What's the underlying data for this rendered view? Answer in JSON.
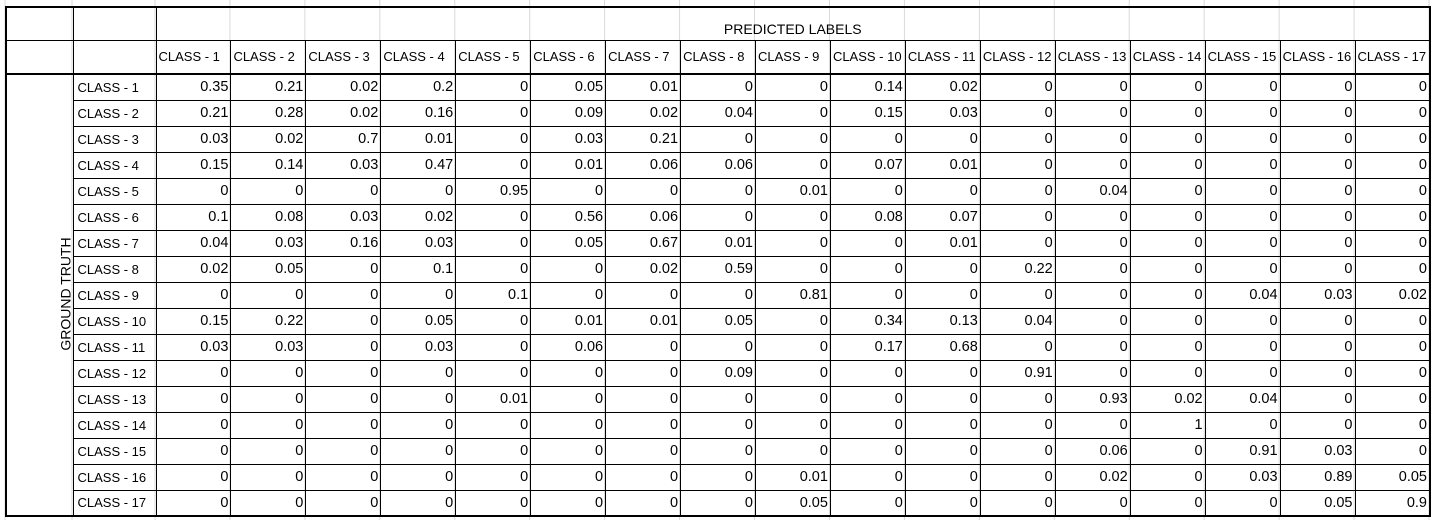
{
  "chart_data": {
    "type": "table",
    "title": "PREDICTED LABELS",
    "ylabel": "GROUND TRUTH",
    "columns": [
      "CLASS - 1",
      "CLASS - 2",
      "CLASS - 3",
      "CLASS - 4",
      "CLASS - 5",
      "CLASS - 6",
      "CLASS - 7",
      "CLASS - 8",
      "CLASS - 9",
      "CLASS - 10",
      "CLASS - 11",
      "CLASS - 12",
      "CLASS - 13",
      "CLASS - 14",
      "CLASS - 15",
      "CLASS - 16",
      "CLASS - 17"
    ],
    "rows": [
      {
        "label": "CLASS - 1",
        "values": [
          "0.35",
          "0.21",
          "0.02",
          "0.2",
          "0",
          "0.05",
          "0.01",
          "0",
          "0",
          "0.14",
          "0.02",
          "0",
          "0",
          "0",
          "0",
          "0",
          "0"
        ]
      },
      {
        "label": "CLASS - 2",
        "values": [
          "0.21",
          "0.28",
          "0.02",
          "0.16",
          "0",
          "0.09",
          "0.02",
          "0.04",
          "0",
          "0.15",
          "0.03",
          "0",
          "0",
          "0",
          "0",
          "0",
          "0"
        ]
      },
      {
        "label": "CLASS - 3",
        "values": [
          "0.03",
          "0.02",
          "0.7",
          "0.01",
          "0",
          "0.03",
          "0.21",
          "0",
          "0",
          "0",
          "0",
          "0",
          "0",
          "0",
          "0",
          "0",
          "0"
        ]
      },
      {
        "label": "CLASS - 4",
        "values": [
          "0.15",
          "0.14",
          "0.03",
          "0.47",
          "0",
          "0.01",
          "0.06",
          "0.06",
          "0",
          "0.07",
          "0.01",
          "0",
          "0",
          "0",
          "0",
          "0",
          "0"
        ]
      },
      {
        "label": "CLASS - 5",
        "values": [
          "0",
          "0",
          "0",
          "0",
          "0.95",
          "0",
          "0",
          "0",
          "0.01",
          "0",
          "0",
          "0",
          "0.04",
          "0",
          "0",
          "0",
          "0"
        ]
      },
      {
        "label": "CLASS - 6",
        "values": [
          "0.1",
          "0.08",
          "0.03",
          "0.02",
          "0",
          "0.56",
          "0.06",
          "0",
          "0",
          "0.08",
          "0.07",
          "0",
          "0",
          "0",
          "0",
          "0",
          "0"
        ]
      },
      {
        "label": "CLASS - 7",
        "values": [
          "0.04",
          "0.03",
          "0.16",
          "0.03",
          "0",
          "0.05",
          "0.67",
          "0.01",
          "0",
          "0",
          "0.01",
          "0",
          "0",
          "0",
          "0",
          "0",
          "0"
        ]
      },
      {
        "label": "CLASS - 8",
        "values": [
          "0.02",
          "0.05",
          "0",
          "0.1",
          "0",
          "0",
          "0.02",
          "0.59",
          "0",
          "0",
          "0",
          "0.22",
          "0",
          "0",
          "0",
          "0",
          "0"
        ]
      },
      {
        "label": "CLASS - 9",
        "values": [
          "0",
          "0",
          "0",
          "0",
          "0.1",
          "0",
          "0",
          "0",
          "0.81",
          "0",
          "0",
          "0",
          "0",
          "0",
          "0.04",
          "0.03",
          "0.02"
        ]
      },
      {
        "label": "CLASS - 10",
        "values": [
          "0.15",
          "0.22",
          "0",
          "0.05",
          "0",
          "0.01",
          "0.01",
          "0.05",
          "0",
          "0.34",
          "0.13",
          "0.04",
          "0",
          "0",
          "0",
          "0",
          "0"
        ]
      },
      {
        "label": "CLASS - 11",
        "values": [
          "0.03",
          "0.03",
          "0",
          "0.03",
          "0",
          "0.06",
          "0",
          "0",
          "0",
          "0.17",
          "0.68",
          "0",
          "0",
          "0",
          "0",
          "0",
          "0"
        ]
      },
      {
        "label": "CLASS - 12",
        "values": [
          "0",
          "0",
          "0",
          "0",
          "0",
          "0",
          "0",
          "0.09",
          "0",
          "0",
          "0",
          "0.91",
          "0",
          "0",
          "0",
          "0",
          "0"
        ]
      },
      {
        "label": "CLASS - 13",
        "values": [
          "0",
          "0",
          "0",
          "0",
          "0.01",
          "0",
          "0",
          "0",
          "0",
          "0",
          "0",
          "0",
          "0.93",
          "0.02",
          "0.04",
          "0",
          "0"
        ]
      },
      {
        "label": "CLASS - 14",
        "values": [
          "0",
          "0",
          "0",
          "0",
          "0",
          "0",
          "0",
          "0",
          "0",
          "0",
          "0",
          "0",
          "0",
          "1",
          "0",
          "0",
          "0"
        ]
      },
      {
        "label": "CLASS - 15",
        "values": [
          "0",
          "0",
          "0",
          "0",
          "0",
          "0",
          "0",
          "0",
          "0",
          "0",
          "0",
          "0",
          "0.06",
          "0",
          "0.91",
          "0.03",
          "0"
        ]
      },
      {
        "label": "CLASS - 16",
        "values": [
          "0",
          "0",
          "0",
          "0",
          "0",
          "0",
          "0",
          "0",
          "0.01",
          "0",
          "0",
          "0",
          "0.02",
          "0",
          "0.03",
          "0.89",
          "0.05"
        ]
      },
      {
        "label": "CLASS - 17",
        "values": [
          "0",
          "0",
          "0",
          "0",
          "0",
          "0",
          "0",
          "0",
          "0.05",
          "0",
          "0",
          "0",
          "0",
          "0",
          "0",
          "0.05",
          "0.9"
        ]
      }
    ]
  }
}
